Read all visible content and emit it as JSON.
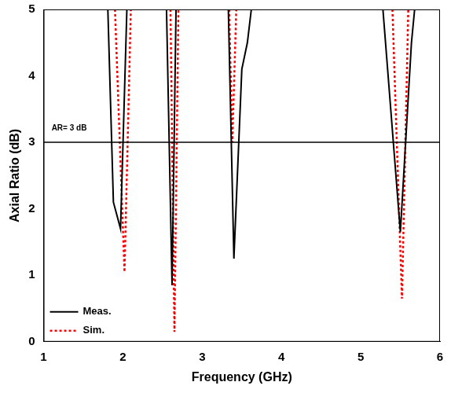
{
  "chart_data": {
    "type": "line",
    "x_label": "Frequency (GHz)",
    "y_label": "Axial Ratio (dB)",
    "xlim": [
      1,
      6
    ],
    "xticks": [
      1,
      2,
      3,
      4,
      5,
      6
    ],
    "ylim": [
      0,
      5
    ],
    "yticks": [
      0,
      1,
      2,
      3,
      4,
      5
    ],
    "grid": false,
    "legend": "lower left",
    "series": [
      {
        "name": "Meas.",
        "color": "#000000",
        "line_style": "solid",
        "x": [
          1.81,
          1.88,
          1.97,
          2.05,
          2.3,
          2.55,
          2.62,
          2.67,
          3.0,
          3.33,
          3.4,
          3.5,
          3.57,
          3.62,
          4.5,
          5.28,
          5.5,
          5.64,
          5.68
        ],
        "values": [
          5,
          2.1,
          1.7,
          5,
          null,
          5,
          0.85,
          5,
          null,
          5,
          1.25,
          4.1,
          4.5,
          5,
          null,
          5,
          1.65,
          4.5,
          5
        ]
      },
      {
        "name": "Sim.",
        "color": "#ff0000",
        "line_style": "dotted",
        "x": [
          1.9,
          2.02,
          2.1,
          2.3,
          2.6,
          2.65,
          2.7,
          3.0,
          3.34,
          3.38,
          3.43,
          4.5,
          5.4,
          5.52,
          5.6
        ],
        "values": [
          5,
          1.05,
          5,
          null,
          5,
          0.15,
          5,
          null,
          5,
          3.0,
          5,
          null,
          5,
          0.65,
          5
        ]
      }
    ],
    "annotations": [
      {
        "text": "AR= 3 dB",
        "x": 1.1,
        "y": 3.15,
        "line_y": 3
      }
    ]
  }
}
